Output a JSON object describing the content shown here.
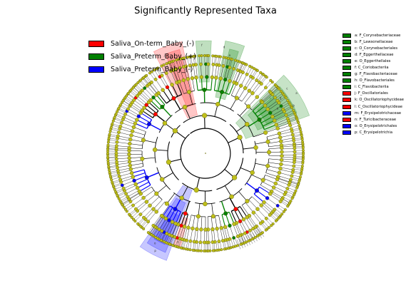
{
  "title": "Significantly Represented Taxa",
  "colors": {
    "on_term": "#ff0000",
    "preterm_plus": "#008000",
    "preterm_minus": "#0000ff",
    "node_default": "#bfbf1a",
    "edge": "#000000"
  },
  "class_legend": [
    {
      "label": "Saliva_On-term_Baby_(-)",
      "color": "#ff0000"
    },
    {
      "label": "Saliva_Preterm_Baby_(+)",
      "color": "#008000"
    },
    {
      "label": "Saliva_Preterm_Baby_(-)",
      "color": "#0000ff"
    }
  ],
  "taxa_legend": [
    {
      "label": "a: F_Corynebacteriaceae",
      "color": "#008000"
    },
    {
      "label": "b: F_Lawsonellaceae",
      "color": "#008000"
    },
    {
      "label": "c: O_Corynebacteriales",
      "color": "#008000"
    },
    {
      "label": "d: F_Eggerthellaceae",
      "color": "#008000"
    },
    {
      "label": "e: O_Eggerthellales",
      "color": "#008000"
    },
    {
      "label": "f: C_Coriobacteriia",
      "color": "#008000"
    },
    {
      "label": "g: F_Flavobacteriaceae",
      "color": "#008000"
    },
    {
      "label": "h: O_Flavobacteriales",
      "color": "#008000"
    },
    {
      "label": "i: C_Flavobacteriia",
      "color": "#008000"
    },
    {
      "label": "j: F_Oscillatoriales",
      "color": "#ff0000"
    },
    {
      "label": "k: O_Oscillatoriophycideae",
      "color": "#ff0000"
    },
    {
      "label": "l: C_Oscillatoriophycideae",
      "color": "#ff0000"
    },
    {
      "label": "m: F_Erysipelotrichaceae",
      "color": "#0000ff"
    },
    {
      "label": "n: F_Turicibacteraceae",
      "color": "#ff0000"
    },
    {
      "label": "o: O_Erysipelotrichales",
      "color": "#0000ff"
    },
    {
      "label": "p: C_Erysipelotrichia",
      "color": "#0000ff"
    }
  ],
  "clade_letters": [
    "a",
    "b",
    "c",
    "d",
    "e",
    "f",
    "g",
    "h",
    "i",
    "j",
    "k",
    "l",
    "m",
    "n",
    "o",
    "p"
  ]
}
